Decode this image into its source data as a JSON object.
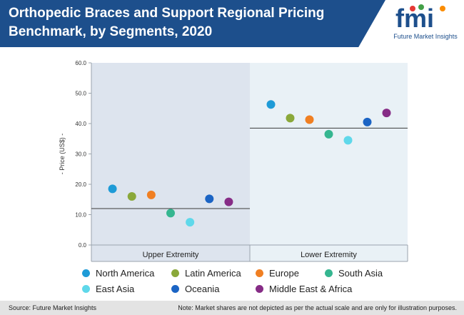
{
  "header": {
    "title": "Orthopedic Braces and Support Regional Pricing Benchmark, by Segments, 2020",
    "logo_text": "fmi",
    "logo_tagline": "Future Market Insights"
  },
  "footer": {
    "source": "Source: Future Market Insights",
    "note": "Note: Market shares are not depicted as per the actual scale and are only for illustration purposes."
  },
  "colors": {
    "banner": "#1d4f8c",
    "panel_left": "#dde4ee",
    "panel_right": "#e9f1f6"
  },
  "chart_data": {
    "type": "scatter",
    "title": "",
    "ylabel": "- Price (US$) -",
    "ylim": [
      0,
      60
    ],
    "yticks": [
      "0.0",
      "10.0",
      "20.0",
      "30.0",
      "40.0",
      "50.0",
      "60.0"
    ],
    "categories": [
      "Upper Extremity",
      "Lower Extremity"
    ],
    "reference_lines": [
      12,
      38.5
    ],
    "series": [
      {
        "name": "North America",
        "color": "#1e9bd7",
        "values": [
          18.5,
          46.3
        ]
      },
      {
        "name": "Latin America",
        "color": "#8aa83a",
        "values": [
          16,
          41.8
        ]
      },
      {
        "name": "Europe",
        "color": "#f07f22",
        "values": [
          16.5,
          41.3
        ]
      },
      {
        "name": "South Asia",
        "color": "#35b690",
        "values": [
          10.5,
          36.5
        ]
      },
      {
        "name": "East Asia",
        "color": "#5fd8ea",
        "values": [
          7.5,
          34.5
        ]
      },
      {
        "name": "Oceania",
        "color": "#1b64c4",
        "values": [
          15.2,
          40.5
        ]
      },
      {
        "name": "Middle East & Africa",
        "color": "#862c86",
        "values": [
          14.2,
          43.5
        ]
      }
    ],
    "legend_position": "bottom"
  }
}
